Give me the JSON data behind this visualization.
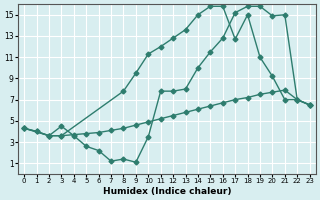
{
  "xlabel": "Humidex (Indice chaleur)",
  "bg_color": "#d8eef0",
  "grid_color": "#ffffff",
  "line_color": "#2e7d6e",
  "xlim": [
    -0.5,
    23.5
  ],
  "ylim": [
    0,
    16
  ],
  "xticks": [
    0,
    1,
    2,
    3,
    4,
    5,
    6,
    7,
    8,
    9,
    10,
    11,
    12,
    13,
    14,
    15,
    16,
    17,
    18,
    19,
    20,
    21,
    22,
    23
  ],
  "yticks": [
    1,
    3,
    5,
    7,
    9,
    11,
    13,
    15
  ],
  "line1_x": [
    0,
    1,
    2,
    3,
    4,
    5,
    6,
    7,
    8,
    9,
    10,
    11,
    12,
    13,
    14,
    15,
    16,
    17,
    18,
    19,
    20,
    21,
    22,
    23
  ],
  "line1_y": [
    4.3,
    4.0,
    3.6,
    3.6,
    3.7,
    3.8,
    3.9,
    4.1,
    4.3,
    4.6,
    4.9,
    5.2,
    5.5,
    5.8,
    6.1,
    6.4,
    6.7,
    7.0,
    7.2,
    7.5,
    7.7,
    7.9,
    7.0,
    6.5
  ],
  "line2_x": [
    0,
    1,
    2,
    3,
    4,
    5,
    6,
    7,
    8,
    9,
    10,
    11,
    12,
    13,
    14,
    15,
    16,
    17,
    18,
    19,
    20,
    21,
    22,
    23
  ],
  "line2_y": [
    4.3,
    4.0,
    3.6,
    4.5,
    3.6,
    2.6,
    2.2,
    1.2,
    1.4,
    1.1,
    3.5,
    7.8,
    7.8,
    8.0,
    10.0,
    11.5,
    12.8,
    15.2,
    15.8,
    15.8,
    14.9,
    15.0,
    7.0,
    6.5
  ],
  "line3_x": [
    0,
    2,
    3,
    8,
    9,
    10,
    11,
    12,
    13,
    14,
    15,
    16,
    17,
    18,
    19,
    20,
    21,
    22,
    23
  ],
  "line3_y": [
    4.3,
    3.6,
    3.6,
    7.8,
    9.5,
    11.3,
    12.0,
    12.8,
    13.6,
    15.0,
    15.8,
    15.8,
    12.7,
    15.0,
    11.0,
    9.2,
    7.0,
    7.0,
    6.5
  ]
}
